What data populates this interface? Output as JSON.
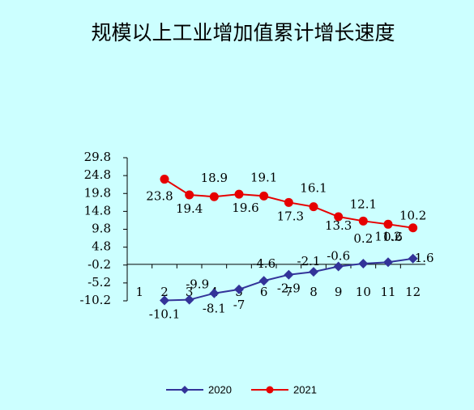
{
  "chart_data": {
    "type": "line",
    "title": "规模以上工业增加值累计增长速度",
    "categories": [
      "1",
      "2",
      "3",
      "4",
      "5",
      "6",
      "7",
      "8",
      "9",
      "10",
      "11",
      "12"
    ],
    "series": [
      {
        "name": "2020",
        "color": "#333399",
        "marker": "diamond",
        "values": [
          null,
          -10.1,
          -9.9,
          -8.1,
          -7,
          -4.6,
          -2.9,
          -2.1,
          -0.6,
          0.2,
          0.6,
          1.6
        ]
      },
      {
        "name": "2021",
        "color": "#e60000",
        "marker": "circle",
        "values": [
          null,
          23.8,
          19.4,
          18.9,
          19.6,
          19.1,
          17.3,
          16.1,
          13.3,
          12.1,
          11.2,
          10.2
        ]
      }
    ],
    "ylim": [
      -10.2,
      29.8
    ],
    "yticks": [
      -10.2,
      -5.2,
      -0.2,
      4.8,
      9.8,
      14.8,
      19.8,
      24.8,
      29.8
    ],
    "legend": "bottom"
  }
}
